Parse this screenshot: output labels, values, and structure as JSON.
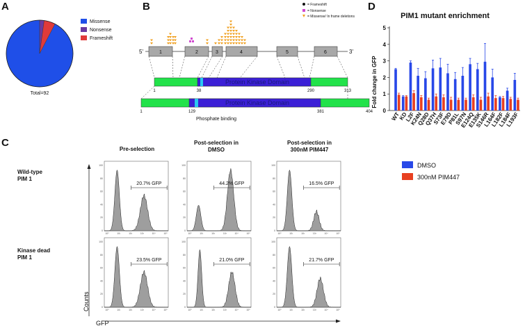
{
  "panels": {
    "A": "A",
    "B": "B",
    "C": "C",
    "D": "D"
  },
  "colors": {
    "missense": "#1f4fe8",
    "nonsense": "#6a3aa0",
    "frameshift": "#e03a3a",
    "dmso": "#2848e8",
    "pim447": "#e84020",
    "kinase_domain": "#3b1fd6",
    "green_region": "#22e24a",
    "phosphate_binding": "#29c8f0",
    "exon": "#a8a8a8",
    "histogram_fill": "#9e9e9e",
    "triangle": "#f0a020"
  },
  "panel_a": {
    "total_label": "Total=92",
    "slices": [
      {
        "name": "Missense",
        "value": 85
      },
      {
        "name": "Nonsense",
        "value": 2
      },
      {
        "name": "Frameshift",
        "value": 5
      }
    ]
  },
  "panel_b": {
    "legend": [
      "= Frameshift",
      "= Nonsense",
      "= Missense/ In frame deletions"
    ],
    "prime5": "5'",
    "prime3": "3'",
    "exons": [
      "1",
      "2",
      "3",
      "4",
      "5",
      "6"
    ],
    "domain_label": "Protein Kinase Domain",
    "isoform1_ticks": [
      "1",
      "38",
      "290",
      "313"
    ],
    "isoform2_ticks": [
      "1",
      "129",
      "381",
      "404"
    ],
    "phosphate_label": "Phosphate binding",
    "mutation_columns": [
      2,
      3,
      4,
      3,
      3,
      2,
      1,
      2,
      3,
      4,
      6,
      8,
      6,
      5,
      4,
      3,
      2
    ]
  },
  "panel_c": {
    "columns": [
      "Pre-selection",
      "Post-selection in\nDMSO",
      "Post-selection in\n300nM PIM447"
    ],
    "rows": [
      "Wild-type\nPIM 1",
      "Kinase dead\nPIM 1"
    ],
    "gates": [
      [
        "20.7% GFP",
        "44.2% GFP",
        "16.5% GFP"
      ],
      [
        "23.5% GFP",
        "21.0% GFP",
        "21.7% GFP"
      ]
    ],
    "y_axis": "Counts",
    "x_axis": "GFP",
    "x_ticks": [
      "10⁰",
      "10¹",
      "10²",
      "10³",
      "10⁴",
      "10⁵"
    ],
    "y_ticks": [
      "0",
      "20",
      "40",
      "60",
      "80",
      "100"
    ]
  },
  "chart_data": {
    "type": "bar",
    "title": "PIM1 mutant enrichment",
    "xlabel": "",
    "ylabel": "Fold change in GFP",
    "ylim": [
      0,
      5
    ],
    "yticks": [
      "0",
      "1",
      "2",
      "3",
      "4",
      "5"
    ],
    "categories": [
      "WT",
      "KD",
      "L2F",
      "K24N",
      "Q28D",
      "Q37H",
      "S73F",
      "E79D",
      "P81L",
      "S97N",
      "E124Q",
      "E135K",
      "S146R",
      "L164F",
      "L182F",
      "L184F",
      "L193F"
    ],
    "series": [
      {
        "name": "DMSO",
        "values": [
          2.5,
          0.85,
          2.9,
          2.1,
          1.95,
          2.55,
          2.6,
          2.25,
          1.9,
          2.1,
          2.8,
          2.5,
          2.95,
          2.0,
          0.8,
          1.2,
          1.85
        ],
        "errors": [
          0.05,
          0.05,
          0.1,
          0.45,
          0.4,
          0.5,
          0.55,
          0.55,
          0.4,
          0.5,
          0.35,
          0.35,
          1.1,
          0.5,
          0.05,
          0.15,
          0.4
        ]
      },
      {
        "name": "300nM PIM447",
        "values": [
          0.95,
          0.85,
          1.05,
          0.8,
          0.65,
          0.85,
          0.8,
          0.65,
          0.65,
          0.65,
          0.8,
          0.65,
          0.85,
          0.75,
          0.75,
          0.7,
          0.65
        ],
        "errors": [
          0.1,
          0.05,
          0.15,
          0.1,
          0.1,
          0.15,
          0.15,
          0.15,
          0.1,
          0.1,
          0.15,
          0.15,
          0.2,
          0.15,
          0.1,
          0.1,
          0.1
        ]
      }
    ]
  }
}
